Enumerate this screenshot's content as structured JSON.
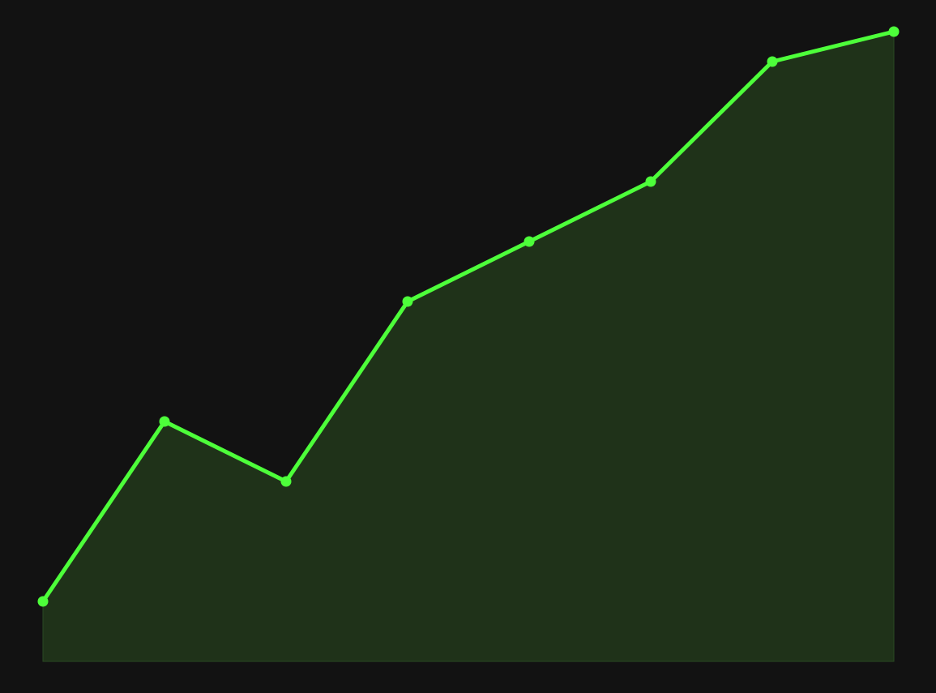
{
  "colors": {
    "background": "#121212",
    "line": "#4dff3a",
    "area_fill": "#1f3219",
    "area_edge": "#2a4a22"
  },
  "chart_data": {
    "type": "area",
    "title": "",
    "xlabel": "",
    "ylabel": "",
    "x": [
      1,
      2,
      3,
      4,
      5,
      6,
      7,
      8
    ],
    "values": [
      1,
      4,
      3,
      6,
      7,
      8,
      10,
      10.5
    ],
    "xlim": [
      1,
      8
    ],
    "ylim": [
      0,
      10.5
    ],
    "grid": false,
    "legend": "none",
    "markers": true
  }
}
